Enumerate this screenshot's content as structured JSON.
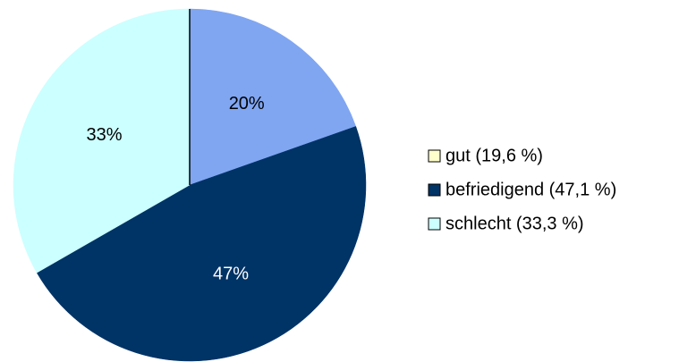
{
  "chart_data": {
    "type": "pie",
    "categories": [
      "gut (19,6 %)",
      "befriedigend (47,1 %)",
      "schlecht (33,3 %)"
    ],
    "values": [
      19.6,
      47.1,
      33.3
    ],
    "value_labels": [
      "20%",
      "47%",
      "33%"
    ],
    "colors": [
      "#80a6f2",
      "#003366",
      "#ccffff"
    ],
    "legend_colors": [
      "#ffffcc",
      "#003366",
      "#ccffff"
    ],
    "legend": "right"
  }
}
